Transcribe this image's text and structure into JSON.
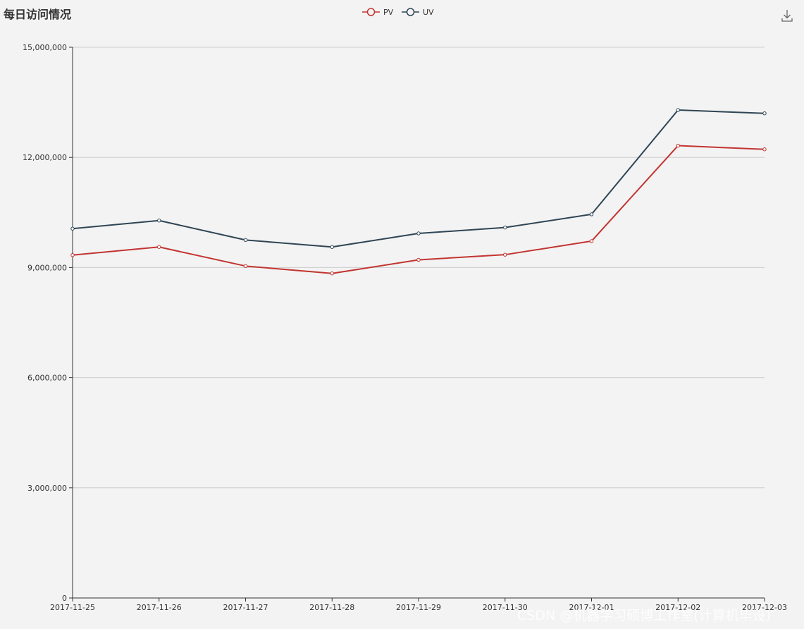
{
  "chart_data": {
    "type": "line",
    "title": "每日访问情况",
    "x": [
      "2017-11-25",
      "2017-11-26",
      "2017-11-27",
      "2017-11-28",
      "2017-11-29",
      "2017-11-30",
      "2017-12-01",
      "2017-12-02",
      "2017-12-03"
    ],
    "series": [
      {
        "name": "PV",
        "color": "#c23531",
        "values": [
          9340000,
          9560000,
          9040000,
          8840000,
          9210000,
          9350000,
          9720000,
          12320000,
          12220000
        ]
      },
      {
        "name": "UV",
        "color": "#2f4554",
        "values": [
          10060000,
          10280000,
          9750000,
          9560000,
          9930000,
          10090000,
          10450000,
          13290000,
          13200000
        ]
      }
    ],
    "y_ticks": [
      "0",
      "3,000,000",
      "6,000,000",
      "9,000,000",
      "12,000,000",
      "15,000,000"
    ],
    "ylim": [
      0,
      15000000
    ],
    "grid": true,
    "legend_position": "top-center"
  },
  "toolbox": {
    "download_icon": "download-icon"
  },
  "watermark": "CSDN @机器学习硕博工作室(计算机毕设)"
}
